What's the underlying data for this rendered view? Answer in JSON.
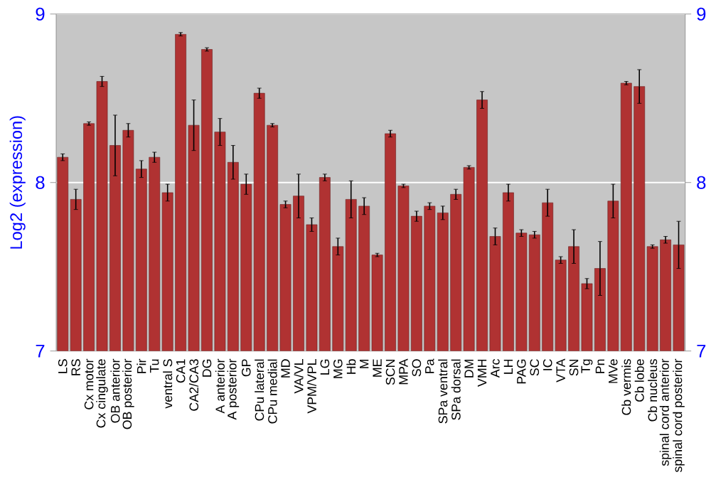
{
  "chart_data": {
    "type": "bar",
    "ylabel": "Log2 (expression)",
    "categories": [
      "LS",
      "RS",
      "Cx motor",
      "Cx cingulate",
      "OB anterior",
      "OB posterior",
      "Pir",
      "Tu",
      "ventral S",
      "CA1",
      "CA2/CA3",
      "DG",
      "A anterior",
      "A posterior",
      "GP",
      "CPu lateral",
      "CPu medial",
      "MD",
      "VA/VL",
      "VPM/VPL",
      "LG",
      "MG",
      "Hb",
      "M",
      "ME",
      "SCN",
      "MPA",
      "SO",
      "Pa",
      "SPa ventral",
      "SPa dorsal",
      "DM",
      "VMH",
      "Arc",
      "LH",
      "PAG",
      "SC",
      "IC",
      "VTA",
      "SN",
      "Tg",
      "Pn",
      "MVe",
      "Cb vermis",
      "Cb lobe",
      "Cb nucleus",
      "spinal cord anterior",
      "spinal cord posterior"
    ],
    "values": [
      8.15,
      7.9,
      8.35,
      8.6,
      8.22,
      8.31,
      8.08,
      8.15,
      7.94,
      8.88,
      8.34,
      8.79,
      8.3,
      8.12,
      7.99,
      8.53,
      8.34,
      7.87,
      7.92,
      7.75,
      8.03,
      7.62,
      7.9,
      7.86,
      7.57,
      8.29,
      7.98,
      7.8,
      7.86,
      7.82,
      7.93,
      8.09,
      8.49,
      7.68,
      7.94,
      7.7,
      7.69,
      7.88,
      7.54,
      7.62,
      7.4,
      7.49,
      7.89,
      8.59,
      8.57,
      7.62,
      7.66,
      7.63
    ],
    "errors": [
      0.02,
      0.06,
      0.01,
      0.03,
      0.18,
      0.04,
      0.05,
      0.03,
      0.05,
      0.01,
      0.15,
      0.01,
      0.08,
      0.1,
      0.06,
      0.03,
      0.01,
      0.02,
      0.13,
      0.04,
      0.02,
      0.05,
      0.11,
      0.05,
      0.01,
      0.02,
      0.01,
      0.03,
      0.02,
      0.04,
      0.03,
      0.01,
      0.05,
      0.05,
      0.05,
      0.02,
      0.02,
      0.08,
      0.02,
      0.1,
      0.03,
      0.16,
      0.1,
      0.01,
      0.1,
      0.01,
      0.02,
      0.14
    ],
    "color": "#b03232",
    "ylim": [
      7,
      9
    ],
    "yticks": [
      7,
      8,
      9
    ],
    "y2lim": [
      7,
      9
    ],
    "y2ticks": [
      7,
      8,
      9
    ],
    "grid": "y"
  }
}
